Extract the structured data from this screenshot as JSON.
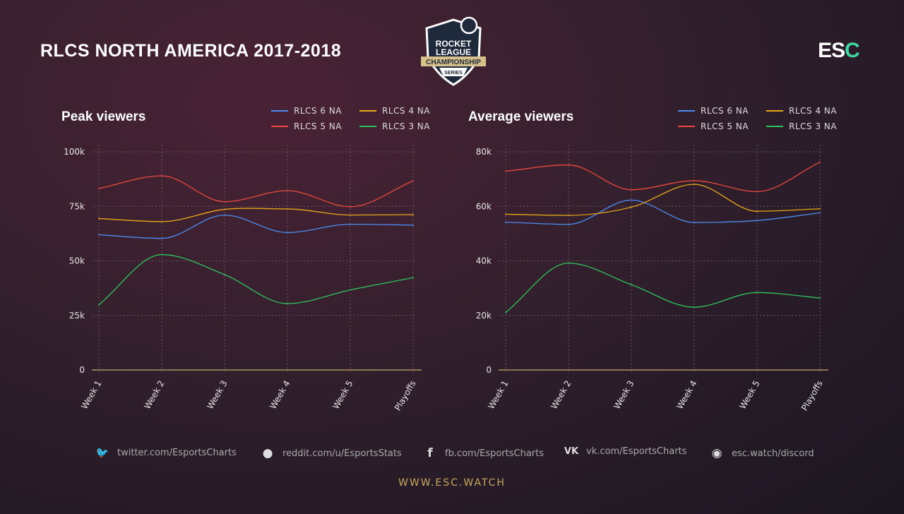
{
  "header": {
    "title": "RLCS NORTH AMERICA 2017-2018",
    "logo_text": "ROCKET LEAGUE CHAMPIONSHIP SERIES",
    "brand_left": "ES",
    "brand_right": "C"
  },
  "colors": {
    "RLCS 6 NA": "#4a8cf0",
    "RLCS 5 NA": "#e84a3c",
    "RLCS 4 NA": "#e8a818",
    "RLCS 3 NA": "#2ec45c",
    "axis": "#8a7650"
  },
  "chart_data": [
    {
      "type": "line",
      "title": "Peak viewers",
      "categories": [
        "Week 1",
        "Week 2",
        "Week 3",
        "Week 4",
        "Week 5",
        "Playoffs"
      ],
      "ylim": [
        0,
        100000
      ],
      "yticks": [
        0,
        25000,
        50000,
        75000,
        100000
      ],
      "ytick_labels": [
        "0",
        "25k",
        "50k",
        "75k",
        "100k"
      ],
      "grid": true,
      "legend": "top-right",
      "series": [
        {
          "name": "RLCS 6 NA",
          "values": [
            62000,
            60300,
            71000,
            63000,
            66800,
            66400
          ]
        },
        {
          "name": "RLCS 4 NA",
          "values": [
            69400,
            68000,
            73600,
            73800,
            71000,
            71200
          ]
        },
        {
          "name": "RLCS 5 NA",
          "values": [
            83200,
            89000,
            77100,
            82200,
            74800,
            86700
          ]
        },
        {
          "name": "RLCS 3 NA",
          "values": [
            29900,
            52900,
            43700,
            30400,
            36700,
            42300
          ]
        }
      ]
    },
    {
      "type": "line",
      "title": "Average viewers",
      "categories": [
        "Week 1",
        "Week 2",
        "Week 3",
        "Week 4",
        "Week 5",
        "Playoffs"
      ],
      "ylim": [
        0,
        80000
      ],
      "yticks": [
        0,
        20000,
        40000,
        60000,
        80000
      ],
      "ytick_labels": [
        "0",
        "20k",
        "40k",
        "60k",
        "80k"
      ],
      "grid": true,
      "legend": "top-right",
      "series": [
        {
          "name": "RLCS 6 NA",
          "values": [
            54200,
            53400,
            62300,
            54100,
            54800,
            57600
          ]
        },
        {
          "name": "RLCS 4 NA",
          "values": [
            57100,
            56700,
            59700,
            68100,
            58200,
            59100
          ]
        },
        {
          "name": "RLCS 5 NA",
          "values": [
            72900,
            75200,
            66100,
            69400,
            65400,
            76200
          ]
        },
        {
          "name": "RLCS 3 NA",
          "values": [
            21100,
            39200,
            31300,
            23000,
            28400,
            26400
          ]
        }
      ]
    }
  ],
  "footer": {
    "links": [
      {
        "icon": "twitter-icon",
        "glyph": "🐦",
        "text": "twitter.com/EsportsCharts"
      },
      {
        "icon": "reddit-icon",
        "glyph": "●",
        "text": "reddit.com/u/EsportsStats"
      },
      {
        "icon": "facebook-icon",
        "glyph": "f",
        "text": "fb.com/EsportsCharts"
      },
      {
        "icon": "vk-icon",
        "glyph": "VK",
        "text": "vk.com/EsportsCharts"
      },
      {
        "icon": "discord-icon",
        "glyph": "◉",
        "text": "esc.watch/discord"
      }
    ],
    "website": "WWW.ESC.WATCH"
  }
}
